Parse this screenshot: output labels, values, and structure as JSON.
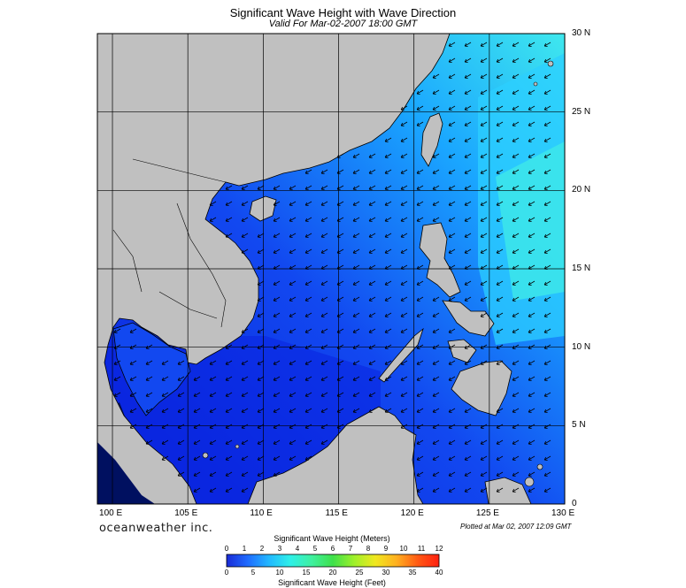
{
  "header": {
    "title": "Significant Wave Height with Wave Direction",
    "subtitle": "Valid For Mar-02-2007 18:00 GMT"
  },
  "map": {
    "lon_labels": [
      "100 E",
      "105 E",
      "110 E",
      "115 E",
      "120 E",
      "125 E",
      "130 E"
    ],
    "lat_labels": [
      "30 N",
      "25 N",
      "20 N",
      "15 N",
      "10 N",
      "5 N",
      "0"
    ],
    "extent": {
      "lon": [
        99,
        130
      ],
      "lat": [
        0,
        30
      ]
    },
    "colors": {
      "land": "#c0c0c0",
      "sea_deep": "#0a1fd8",
      "sea_mid": "#1560ff",
      "sea_light": "#1aa6ff",
      "sea_cyan": "#3fe0f0",
      "outside": "#001060"
    }
  },
  "footer": {
    "brand": "oceanweather inc.",
    "plotted": "Plotted at Mar 02, 2007 12:09 GMT"
  },
  "legend": {
    "meters_title": "Significant Wave Height (Meters)",
    "feet_title": "Significant Wave Height (Feet)",
    "meters_ticks": [
      "0",
      "1",
      "2",
      "3",
      "4",
      "5",
      "6",
      "7",
      "8",
      "9",
      "10",
      "11",
      "12"
    ],
    "feet_ticks": [
      "0",
      "5",
      "10",
      "15",
      "20",
      "25",
      "30",
      "35",
      "40"
    ],
    "gradient": [
      "#1a2bd6",
      "#1f6cff",
      "#22b8ff",
      "#2ef0e8",
      "#3ff0a0",
      "#3ee04a",
      "#9ef02a",
      "#f0e820",
      "#ffb020",
      "#ff5a14",
      "#ff2010"
    ]
  }
}
